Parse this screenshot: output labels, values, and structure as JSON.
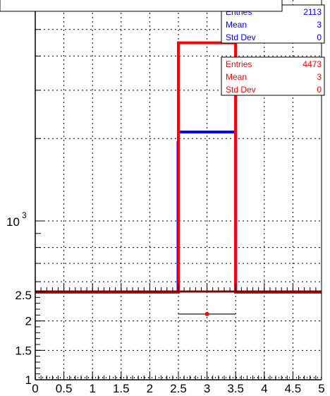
{
  "chart_data": [
    {
      "type": "histogram",
      "panel": "upper",
      "y_scale": "log",
      "y_tick_labels": [
        "10",
        "3"
      ],
      "x_range": [
        0,
        5
      ],
      "bin_edges": [
        0,
        0.5,
        1,
        1.5,
        2,
        2.5,
        3.5,
        4,
        4.5,
        5
      ],
      "series": [
        {
          "color": "#0000ff",
          "bin_values": [
            0,
            0,
            0,
            0,
            0,
            2113,
            0,
            0,
            0
          ],
          "stats": {
            "Entries": "2113",
            "Mean": "3",
            "Std Dev": "0"
          }
        },
        {
          "color": "#ff0000",
          "bin_values": [
            0,
            0,
            0,
            0,
            0,
            4473,
            0,
            0,
            0
          ],
          "stats": {
            "Entries": "4473",
            "Mean": "3",
            "Std Dev": "0"
          }
        }
      ],
      "grid": true
    },
    {
      "type": "scatter",
      "panel": "lower",
      "x_range": [
        0,
        5
      ],
      "y_range": [
        1,
        2.5
      ],
      "y_tick_labels": [
        "2.5",
        "2",
        "1.5",
        "1"
      ],
      "points": [
        {
          "x": 3,
          "y": 2.117,
          "x_err": 0.5
        }
      ],
      "reference_line_y": 2.5,
      "grid": true
    }
  ],
  "x_tick_labels": [
    "0",
    "0.5",
    "1",
    "1.5",
    "2",
    "2.5",
    "3",
    "3.5",
    "4",
    "4.5",
    "5"
  ],
  "stat_labels": [
    "Entries",
    "Mean",
    "Std Dev"
  ],
  "colors": {
    "blue": "#0000ff",
    "red": "#ff0000",
    "axis": "#000000"
  }
}
